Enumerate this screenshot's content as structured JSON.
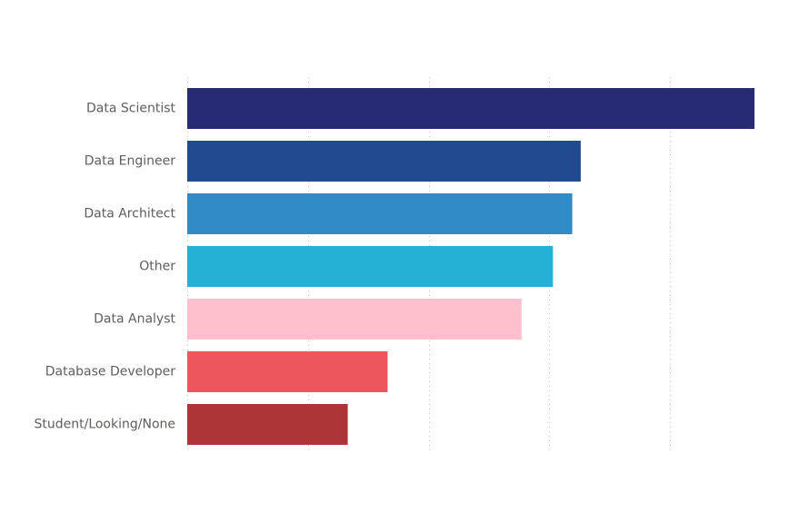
{
  "chart_data": {
    "type": "bar",
    "orientation": "horizontal",
    "title": "",
    "xlabel": "",
    "ylabel": "",
    "categories": [
      "Data Scientist",
      "Data Engineer",
      "Data Architect",
      "Other",
      "Data Analyst",
      "Database Developer",
      "Student/Looking/None"
    ],
    "values": [
      4.7,
      3.26,
      3.19,
      3.03,
      2.77,
      1.66,
      1.33
    ],
    "colors": [
      "#272A75",
      "#224A91",
      "#318BC6",
      "#25B1D5",
      "#FFC0CD",
      "#EC565C",
      "#AD3538"
    ],
    "xlim": [
      0,
      5
    ],
    "x_gridlines": [
      0,
      1,
      2,
      3,
      4
    ],
    "grid": true,
    "axis_tick_labels_visible": false,
    "legend": "none"
  }
}
